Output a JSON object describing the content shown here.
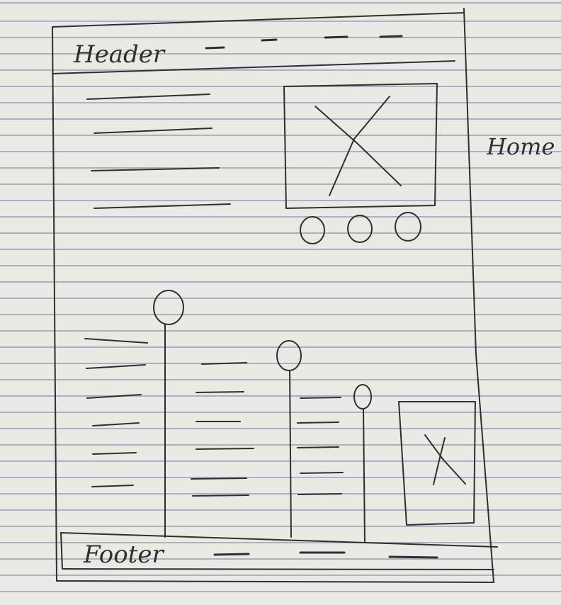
{
  "header": {
    "label": "Header"
  },
  "side_note": {
    "label": "Home"
  },
  "footer": {
    "label": "Footer"
  },
  "carousel": {
    "dot_count": 3
  },
  "colors": {
    "paper": "#eae9e4",
    "rule": "#7882a5",
    "ink": "#2f2f2f"
  },
  "icons": [
    "image-placeholder-icon",
    "carousel-dot-icon",
    "pin-marker-icon"
  ]
}
